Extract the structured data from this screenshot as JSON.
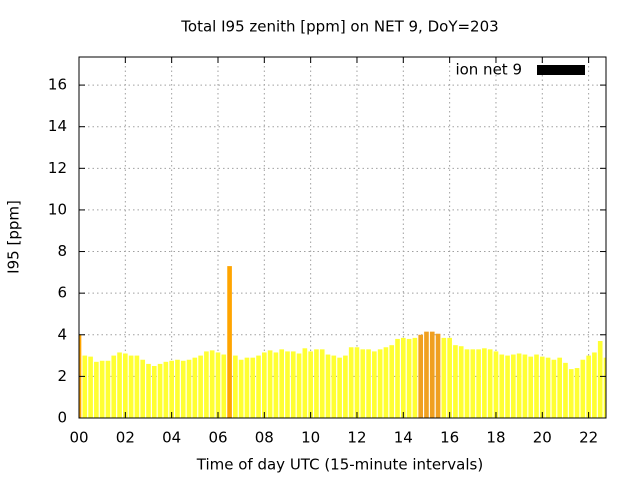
{
  "chart_data": {
    "type": "bar",
    "title": "Total I95 zenith [ppm] on NET 9, DoY=203",
    "x_label": "Time of day UTC (15-minute intervals)",
    "y_label": "I95 [ppm]",
    "x": [
      0,
      0.25,
      0.5,
      0.75,
      1,
      1.25,
      1.5,
      1.75,
      2,
      2.25,
      2.5,
      2.75,
      3,
      3.25,
      3.5,
      3.75,
      4,
      4.25,
      4.5,
      4.75,
      5,
      5.25,
      5.5,
      5.75,
      6,
      6.25,
      6.5,
      6.75,
      7,
      7.25,
      7.5,
      7.75,
      8,
      8.25,
      8.5,
      8.75,
      9,
      9.25,
      9.5,
      9.75,
      10,
      10.25,
      10.5,
      10.75,
      11,
      11.25,
      11.5,
      11.75,
      12,
      12.25,
      12.5,
      12.75,
      13,
      13.25,
      13.5,
      13.75,
      14,
      14.25,
      14.5,
      14.75,
      15,
      15.25,
      15.5,
      15.75,
      16,
      16.25,
      16.5,
      16.75,
      17,
      17.25,
      17.5,
      17.75,
      18,
      18.25,
      18.5,
      18.75,
      19,
      19.25,
      19.5,
      19.75,
      20,
      20.25,
      20.5,
      20.75,
      21,
      21.25,
      21.5,
      21.75,
      22,
      22.25,
      22.5,
      22.75
    ],
    "series": [
      {
        "name": "ion net 9",
        "color": "#000000",
        "values": [
          4.0,
          3.0,
          2.95,
          2.7,
          2.75,
          2.75,
          3.0,
          3.15,
          3.1,
          3.0,
          3.0,
          2.8,
          2.6,
          2.5,
          2.6,
          2.7,
          2.75,
          2.8,
          2.75,
          2.8,
          2.9,
          3.0,
          3.2,
          3.25,
          3.15,
          3.05,
          7.3,
          3.0,
          2.8,
          2.9,
          2.9,
          3.0,
          3.15,
          3.25,
          3.15,
          3.3,
          3.2,
          3.2,
          3.1,
          3.35,
          3.2,
          3.3,
          3.3,
          3.05,
          3.0,
          2.9,
          3.0,
          3.4,
          3.4,
          3.3,
          3.3,
          3.2,
          3.3,
          3.4,
          3.5,
          3.8,
          3.85,
          3.8,
          3.85,
          4.0,
          4.15,
          4.15,
          4.05,
          3.85,
          3.85,
          3.5,
          3.45,
          3.3,
          3.3,
          3.3,
          3.35,
          3.3,
          3.2,
          3.05,
          3.0,
          3.05,
          3.1,
          3.05,
          2.95,
          3.05,
          2.95,
          2.9,
          2.8,
          2.9,
          2.65,
          2.35,
          2.4,
          2.8,
          3.0,
          3.15,
          3.7,
          2.9
        ],
        "bar_colors": [
          "#ffa500",
          "#ffff33",
          "#ffff33",
          "#ffff33",
          "#ffff33",
          "#ffff33",
          "#ffff33",
          "#ffff33",
          "#ffff33",
          "#ffff33",
          "#ffff33",
          "#ffff33",
          "#ffff33",
          "#ffff33",
          "#ffff33",
          "#ffff33",
          "#ffff33",
          "#ffff33",
          "#ffff33",
          "#ffff33",
          "#ffff33",
          "#ffff33",
          "#ffff33",
          "#ffff33",
          "#ffff33",
          "#ffff33",
          "#ffa500",
          "#ffff33",
          "#ffff33",
          "#ffff33",
          "#ffff33",
          "#ffff33",
          "#ffff33",
          "#ffff33",
          "#ffff33",
          "#ffff33",
          "#ffff33",
          "#ffff33",
          "#ffff33",
          "#ffff33",
          "#ffff33",
          "#ffff33",
          "#ffff33",
          "#ffff33",
          "#ffff33",
          "#ffff33",
          "#ffff33",
          "#ffff33",
          "#ffff33",
          "#ffff33",
          "#ffff33",
          "#ffff33",
          "#ffff33",
          "#ffff33",
          "#ffff33",
          "#ffff33",
          "#ffff33",
          "#ffff33",
          "#ffff33",
          "#f0a020",
          "#f0a020",
          "#f0a020",
          "#f0a020",
          "#ffff33",
          "#ffff33",
          "#ffff33",
          "#ffff33",
          "#ffff33",
          "#ffff33",
          "#ffff33",
          "#ffff33",
          "#ffff33",
          "#ffff33",
          "#ffff33",
          "#ffff33",
          "#ffff33",
          "#ffff33",
          "#ffff33",
          "#ffff33",
          "#ffff33",
          "#ffff33",
          "#ffff33",
          "#ffff33",
          "#ffff33",
          "#ffff33",
          "#ffff33",
          "#ffff33",
          "#ffff33",
          "#ffff33",
          "#ffff33",
          "#ffff33",
          "#ffff33"
        ]
      }
    ],
    "xlim": [
      0,
      22.75
    ],
    "xticks": [
      {
        "value": 0,
        "label": "00"
      },
      {
        "value": 2,
        "label": "02"
      },
      {
        "value": 4,
        "label": "04"
      },
      {
        "value": 6,
        "label": "06"
      },
      {
        "value": 8,
        "label": "08"
      },
      {
        "value": 10,
        "label": "10"
      },
      {
        "value": 12,
        "label": "12"
      },
      {
        "value": 14,
        "label": "14"
      },
      {
        "value": 16,
        "label": "16"
      },
      {
        "value": 18,
        "label": "18"
      },
      {
        "value": 20,
        "label": "20"
      },
      {
        "value": 22,
        "label": "22"
      }
    ],
    "ylim": [
      0,
      17.35
    ],
    "yticks": [
      0,
      2,
      4,
      6,
      8,
      10,
      12,
      14,
      16
    ],
    "grid": true,
    "legend": "top-right"
  }
}
